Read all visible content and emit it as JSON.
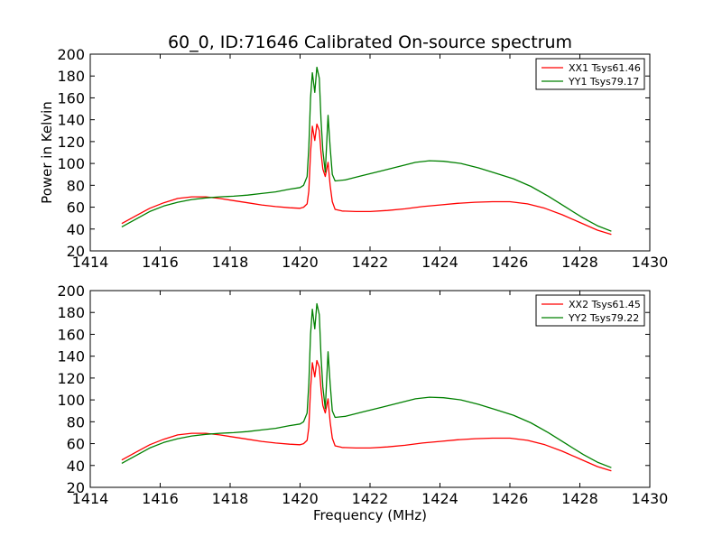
{
  "title": "60_0, ID:71646 Calibrated On-source spectrum",
  "chart_data": [
    {
      "type": "line",
      "title": "60_0, ID:71646 Calibrated On-source spectrum",
      "xlabel": "",
      "ylabel": "Power in Kelvin",
      "xlim": [
        1414,
        1430
      ],
      "ylim": [
        20,
        200
      ],
      "xticks": [
        "1414",
        "1416",
        "1418",
        "1420",
        "1422",
        "1424",
        "1426",
        "1428",
        "1430"
      ],
      "yticks": [
        "20",
        "40",
        "60",
        "80",
        "100",
        "120",
        "140",
        "160",
        "180",
        "200"
      ],
      "legend": "top-right",
      "grid": false,
      "series": [
        {
          "name": "XX1 Tsys61.46",
          "color": "#ff0000",
          "x": [
            1414.9,
            1415.3,
            1415.7,
            1416.1,
            1416.5,
            1416.9,
            1417.3,
            1417.7,
            1418.1,
            1418.5,
            1418.9,
            1419.3,
            1419.7,
            1420.0,
            1420.1,
            1420.2,
            1420.25,
            1420.3,
            1420.35,
            1420.42,
            1420.48,
            1420.55,
            1420.6,
            1420.65,
            1420.72,
            1420.8,
            1420.86,
            1420.92,
            1421.0,
            1421.2,
            1421.6,
            1422.0,
            1422.5,
            1423.0,
            1423.5,
            1424.0,
            1424.5,
            1425.0,
            1425.5,
            1426.0,
            1426.5,
            1427.0,
            1427.5,
            1428.0,
            1428.5,
            1428.9
          ],
          "y": [
            45,
            52,
            59,
            64,
            68,
            69.5,
            69.5,
            68,
            66,
            64,
            62,
            60.5,
            59.5,
            59,
            60,
            63,
            75,
            110,
            134,
            121,
            136,
            130,
            110,
            95,
            88,
            101,
            80,
            65,
            58,
            56.5,
            56,
            56,
            57,
            58.5,
            60.5,
            62,
            63.5,
            64.5,
            65,
            65,
            63,
            59,
            53,
            46,
            39,
            35
          ]
        },
        {
          "name": "YY1 Tsys79.17",
          "color": "#008000",
          "x": [
            1414.9,
            1415.3,
            1415.7,
            1416.1,
            1416.5,
            1416.9,
            1417.3,
            1417.7,
            1418.1,
            1418.5,
            1418.9,
            1419.3,
            1419.7,
            1420.0,
            1420.1,
            1420.2,
            1420.25,
            1420.3,
            1420.35,
            1420.42,
            1420.48,
            1420.55,
            1420.6,
            1420.65,
            1420.72,
            1420.8,
            1420.86,
            1420.92,
            1421.0,
            1421.3,
            1421.8,
            1422.3,
            1422.8,
            1423.3,
            1423.7,
            1424.1,
            1424.6,
            1425.1,
            1425.6,
            1426.1,
            1426.6,
            1427.1,
            1427.6,
            1428.1,
            1428.5,
            1428.9
          ],
          "y": [
            42,
            49,
            56,
            61,
            64.5,
            67,
            68.5,
            69.5,
            70,
            71,
            72.5,
            74,
            76.5,
            78,
            80,
            88,
            115,
            160,
            183,
            165,
            188,
            178,
            140,
            112,
            92,
            144,
            115,
            90,
            84,
            85,
            89,
            93,
            97,
            101,
            102.5,
            102,
            100,
            96,
            91,
            86,
            79,
            70,
            60,
            50,
            43,
            38
          ]
        }
      ]
    },
    {
      "type": "line",
      "title": "",
      "xlabel": "Frequency (MHz)",
      "ylabel": "",
      "xlim": [
        1414,
        1430
      ],
      "ylim": [
        20,
        200
      ],
      "xticks": [
        "1414",
        "1416",
        "1418",
        "1420",
        "1422",
        "1424",
        "1426",
        "1428",
        "1430"
      ],
      "yticks": [
        "20",
        "40",
        "60",
        "80",
        "100",
        "120",
        "140",
        "160",
        "180",
        "200"
      ],
      "legend": "top-right",
      "grid": false,
      "series": [
        {
          "name": "XX2 Tsys61.45",
          "color": "#ff0000",
          "x": [
            1414.9,
            1415.3,
            1415.7,
            1416.1,
            1416.5,
            1416.9,
            1417.3,
            1417.7,
            1418.1,
            1418.5,
            1418.9,
            1419.3,
            1419.7,
            1420.0,
            1420.1,
            1420.2,
            1420.25,
            1420.3,
            1420.35,
            1420.42,
            1420.48,
            1420.55,
            1420.6,
            1420.65,
            1420.72,
            1420.8,
            1420.86,
            1420.92,
            1421.0,
            1421.2,
            1421.6,
            1422.0,
            1422.5,
            1423.0,
            1423.5,
            1424.0,
            1424.5,
            1425.0,
            1425.5,
            1426.0,
            1426.5,
            1427.0,
            1427.5,
            1428.0,
            1428.5,
            1428.9
          ],
          "y": [
            45,
            52,
            59,
            64,
            68,
            69.5,
            69.5,
            68,
            66,
            64,
            62,
            60.5,
            59.5,
            59,
            60,
            63,
            75,
            110,
            134,
            121,
            136,
            130,
            110,
            95,
            88,
            101,
            80,
            65,
            58,
            56.5,
            56,
            56,
            57,
            58.5,
            60.5,
            62,
            63.5,
            64.5,
            65,
            65,
            63,
            59,
            53,
            46,
            39,
            35
          ]
        },
        {
          "name": "YY2 Tsys79.22",
          "color": "#008000",
          "x": [
            1414.9,
            1415.3,
            1415.7,
            1416.1,
            1416.5,
            1416.9,
            1417.3,
            1417.7,
            1418.1,
            1418.5,
            1418.9,
            1419.3,
            1419.7,
            1420.0,
            1420.1,
            1420.2,
            1420.25,
            1420.3,
            1420.35,
            1420.42,
            1420.48,
            1420.55,
            1420.6,
            1420.65,
            1420.72,
            1420.8,
            1420.86,
            1420.92,
            1421.0,
            1421.3,
            1421.8,
            1422.3,
            1422.8,
            1423.3,
            1423.7,
            1424.1,
            1424.6,
            1425.1,
            1425.6,
            1426.1,
            1426.6,
            1427.1,
            1427.6,
            1428.1,
            1428.5,
            1428.9
          ],
          "y": [
            42,
            49,
            56,
            61,
            64.5,
            67,
            68.5,
            69.5,
            70,
            71,
            72.5,
            74,
            76.5,
            78,
            80,
            88,
            115,
            160,
            183,
            165,
            188,
            178,
            140,
            112,
            92,
            144,
            115,
            90,
            84,
            85,
            89,
            93,
            97,
            101,
            102.5,
            102,
            100,
            96,
            91,
            86,
            79,
            70,
            60,
            50,
            43,
            38
          ]
        }
      ]
    }
  ]
}
